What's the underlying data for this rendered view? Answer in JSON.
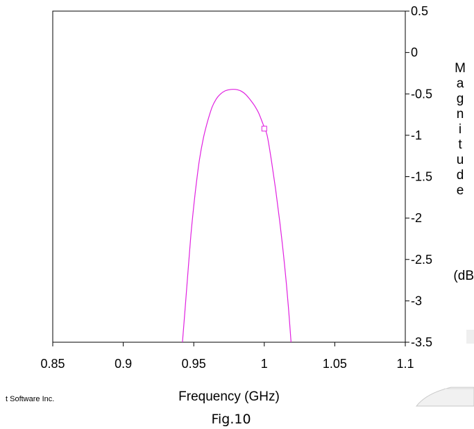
{
  "chart_data": {
    "type": "line",
    "title": "",
    "xlabel": "Frequency (GHz)",
    "ylabel": "Magnitude (dB",
    "xlim": [
      0.85,
      1.1
    ],
    "ylim": [
      -3.5,
      0.5
    ],
    "x_ticks": [
      "0.85",
      "0.9",
      "0.95",
      "1",
      "1.05",
      "1.1"
    ],
    "y_ticks": [
      "0.5",
      "0",
      "-0.5",
      "-1",
      "-1.5",
      "-2",
      "-2.5",
      "-3",
      "-3.5"
    ],
    "y_axis_side": "right",
    "grid": false,
    "line_color": "#e020e0",
    "series": [
      {
        "x": [
          0.942,
          0.945,
          0.948,
          0.951,
          0.954,
          0.957,
          0.96,
          0.963,
          0.966,
          0.969,
          0.972,
          0.975,
          0.978,
          0.981,
          0.984,
          0.987,
          0.99,
          0.993,
          0.996,
          0.999,
          1.002,
          1.005,
          1.008,
          1.011,
          1.014,
          1.017,
          1.019
        ],
        "y": [
          -3.5,
          -2.85,
          -2.2,
          -1.7,
          -1.3,
          -1.02,
          -0.82,
          -0.66,
          -0.56,
          -0.5,
          -0.465,
          -0.45,
          -0.445,
          -0.45,
          -0.47,
          -0.51,
          -0.57,
          -0.64,
          -0.73,
          -0.86,
          -1.0,
          -1.3,
          -1.65,
          -2.05,
          -2.5,
          -3.05,
          -3.5
        ]
      }
    ],
    "markers": [
      {
        "x": 1.0,
        "y": -0.92
      }
    ]
  },
  "footer": {
    "credit": "t Software Inc.",
    "caption": "Fig.10"
  }
}
